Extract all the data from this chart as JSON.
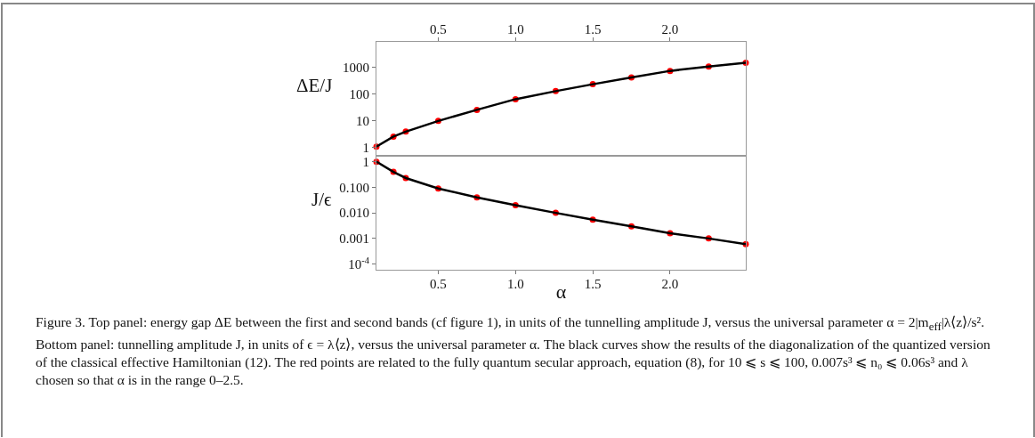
{
  "chart_data": [
    {
      "type": "scatter",
      "ylabel": "ΔE/J",
      "log": "y",
      "xlim": [
        0.1,
        2.49
      ],
      "xticks": [
        {
          "value": 0.5,
          "label": "0.5"
        },
        {
          "value": 1,
          "label": "1.0"
        },
        {
          "value": 1.5,
          "label": "1.5"
        },
        {
          "value": 2,
          "label": "2.0"
        }
      ],
      "ylim": [
        0.5,
        9000
      ],
      "yticks": [
        1,
        10,
        100,
        1000
      ],
      "grid": false,
      "x": [
        0.1,
        0.21,
        0.29,
        0.5,
        0.75,
        1.0,
        1.26,
        1.5,
        1.75,
        2.0,
        2.25,
        2.49
      ],
      "series": [
        {
          "color": "#ff0000",
          "marker": "circle",
          "values": [
            1.1,
            2.6,
            4.0,
            10,
            26,
            65,
            130,
            235,
            420,
            740,
            1080,
            1500
          ]
        },
        {
          "type": "line",
          "color": "#000000",
          "values": [
            1.1,
            2.6,
            4.0,
            10,
            26,
            65,
            130,
            235,
            420,
            740,
            1080,
            1500
          ]
        }
      ]
    },
    {
      "type": "scatter",
      "ylabel": "J/ϵ",
      "xlabel": "α",
      "log": "y",
      "xlim": [
        0.1,
        2.49
      ],
      "xticks": [
        {
          "value": 0.5,
          "label": "0.5"
        },
        {
          "value": 1,
          "label": "1.0"
        },
        {
          "value": 1.5,
          "label": "1.5"
        },
        {
          "value": 2,
          "label": "2.0"
        }
      ],
      "ylim": [
        6e-05,
        1.7
      ],
      "yticks": [
        1,
        {
          "value": 0.1,
          "label": "0.100"
        },
        {
          "value": 0.01,
          "label": "0.010"
        },
        0.001,
        {
          "value": 0.0001,
          "label": "10$^{-4}$"
        }
      ],
      "grid": false,
      "x": [
        0.1,
        0.21,
        0.29,
        0.5,
        0.75,
        1.0,
        1.26,
        1.5,
        1.75,
        2.0,
        2.25,
        2.49
      ],
      "series": [
        {
          "color": "#ff0000",
          "marker": "circle",
          "values": [
            1.0,
            0.4,
            0.23,
            0.09,
            0.04,
            0.02,
            0.01,
            0.0054,
            0.003,
            0.0016,
            0.001,
            0.0006
          ]
        },
        {
          "type": "line",
          "color": "#000000",
          "values": [
            1.0,
            0.4,
            0.23,
            0.09,
            0.04,
            0.02,
            0.01,
            0.0054,
            0.003,
            0.0016,
            0.001,
            0.0006
          ]
        }
      ],
      "annotations": [
        "Figure 3. Top panel: energy gap ΔE between the first and second bands (cf figure 1), in units of the tunnelling amplitude J, versus the universal parameter α = 2|m$_{eff}$|λ⟨z⟩/s². Bottom panel: tunnelling amplitude J, in units of ϵ = λ⟨z⟩, versus the universal parameter α. The black curves show the results of the diagonalization of the quantized version of the classical effective Hamiltonian (12). The red points are related to the fully quantum secular approach, equation (8), for 10 ⩽ s ⩽ 100, 0.007s³ ⩽ n₀ ⩽ 0.06s³ and λ chosen so that α is in the range 0–2.5."
      ]
    }
  ]
}
